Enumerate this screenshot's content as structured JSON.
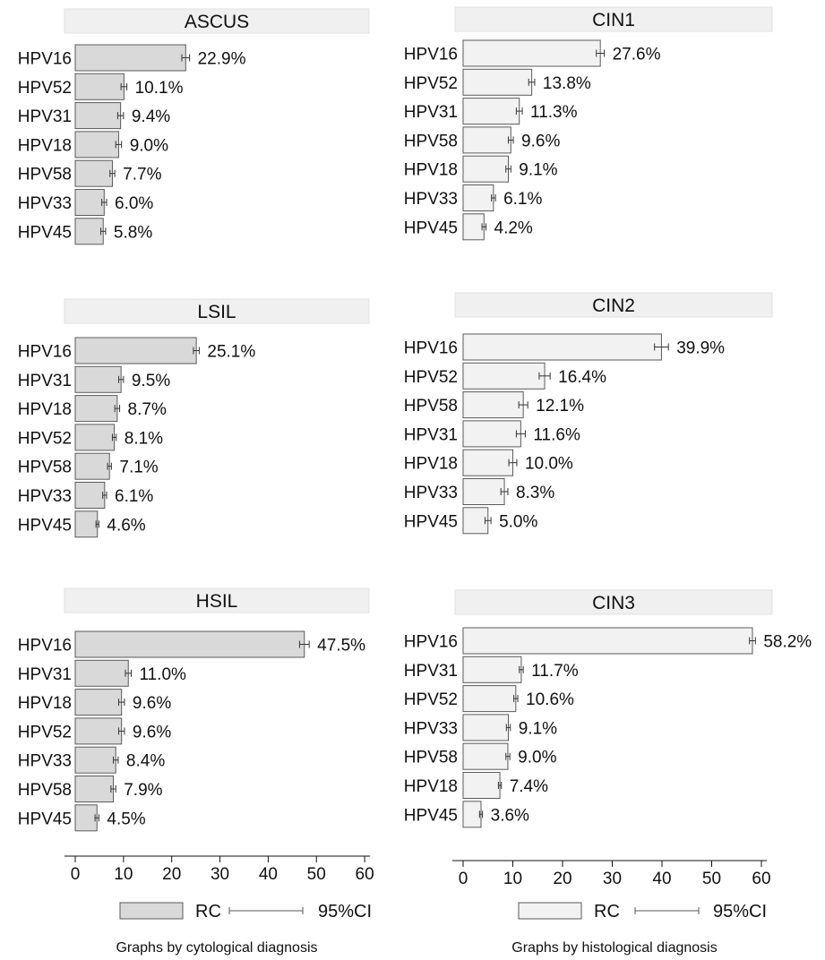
{
  "left_caption": "Graphs by cytological diagnosis",
  "right_caption": "Graphs by histological diagnosis",
  "legend": {
    "bar_label": "RC",
    "ci_label": "95%CI"
  },
  "colors": {
    "cyto_bar": "#d9d9d9",
    "histo_bar": "#f2f2f2",
    "header_bg": "#f0f0f0",
    "bar_stroke": "#5a5a5a"
  },
  "chart_data": [
    {
      "type": "bar",
      "orientation": "horizontal",
      "title": "ASCUS",
      "xlim": [
        0,
        60
      ],
      "xticks": [
        0,
        10,
        20,
        30,
        40,
        50,
        60
      ],
      "categories": [
        "HPV16",
        "HPV52",
        "HPV31",
        "HPV18",
        "HPV58",
        "HPV33",
        "HPV45"
      ],
      "values": [
        22.9,
        10.1,
        9.4,
        9.0,
        7.7,
        6.0,
        5.8
      ],
      "labels": [
        "22.9%",
        "10.1%",
        "9.4%",
        "9.0%",
        "7.7%",
        "6.0%",
        "5.8%"
      ],
      "ci_half_width": [
        0.8,
        0.6,
        0.6,
        0.6,
        0.5,
        0.5,
        0.5
      ]
    },
    {
      "type": "bar",
      "orientation": "horizontal",
      "title": "CIN1",
      "xlim": [
        0,
        60
      ],
      "xticks": [
        0,
        10,
        20,
        30,
        40,
        50,
        60
      ],
      "categories": [
        "HPV16",
        "HPV52",
        "HPV31",
        "HPV58",
        "HPV18",
        "HPV33",
        "HPV45"
      ],
      "values": [
        27.6,
        13.8,
        11.3,
        9.6,
        9.1,
        6.1,
        4.2
      ],
      "labels": [
        "27.6%",
        "13.8%",
        "11.3%",
        "9.6%",
        "9.1%",
        "6.1%",
        "4.2%"
      ],
      "ci_half_width": [
        0.8,
        0.6,
        0.6,
        0.5,
        0.5,
        0.4,
        0.4
      ]
    },
    {
      "type": "bar",
      "orientation": "horizontal",
      "title": "LSIL",
      "xlim": [
        0,
        60
      ],
      "xticks": [
        0,
        10,
        20,
        30,
        40,
        50,
        60
      ],
      "categories": [
        "HPV16",
        "HPV31",
        "HPV18",
        "HPV52",
        "HPV58",
        "HPV33",
        "HPV45"
      ],
      "values": [
        25.1,
        9.5,
        8.7,
        8.1,
        7.1,
        6.1,
        4.6
      ],
      "labels": [
        "25.1%",
        "9.5%",
        "8.7%",
        "8.1%",
        "7.1%",
        "6.1%",
        "4.6%"
      ],
      "ci_half_width": [
        0.6,
        0.5,
        0.5,
        0.4,
        0.4,
        0.4,
        0.3
      ]
    },
    {
      "type": "bar",
      "orientation": "horizontal",
      "title": "CIN2",
      "xlim": [
        0,
        60
      ],
      "xticks": [
        0,
        10,
        20,
        30,
        40,
        50,
        60
      ],
      "categories": [
        "HPV16",
        "HPV52",
        "HPV58",
        "HPV31",
        "HPV18",
        "HPV33",
        "HPV45"
      ],
      "values": [
        39.9,
        16.4,
        12.1,
        11.6,
        10.0,
        8.3,
        5.0
      ],
      "labels": [
        "39.9%",
        "16.4%",
        "12.1%",
        "11.6%",
        "10.0%",
        "8.3%",
        "5.0%"
      ],
      "ci_half_width": [
        1.4,
        1.1,
        0.9,
        0.9,
        0.8,
        0.7,
        0.6
      ]
    },
    {
      "type": "bar",
      "orientation": "horizontal",
      "title": "HSIL",
      "xlim": [
        0,
        60
      ],
      "xticks": [
        0,
        10,
        20,
        30,
        40,
        50,
        60
      ],
      "categories": [
        "HPV16",
        "HPV31",
        "HPV18",
        "HPV52",
        "HPV33",
        "HPV58",
        "HPV45"
      ],
      "values": [
        47.5,
        11.0,
        9.6,
        9.6,
        8.4,
        7.9,
        4.5
      ],
      "labels": [
        "47.5%",
        "11.0%",
        "9.6%",
        "9.6%",
        "8.4%",
        "7.9%",
        "4.5%"
      ],
      "ci_half_width": [
        1.0,
        0.6,
        0.6,
        0.6,
        0.5,
        0.5,
        0.4
      ]
    },
    {
      "type": "bar",
      "orientation": "horizontal",
      "title": "CIN3",
      "xlim": [
        0,
        60
      ],
      "xticks": [
        0,
        10,
        20,
        30,
        40,
        50,
        60
      ],
      "categories": [
        "HPV16",
        "HPV31",
        "HPV52",
        "HPV33",
        "HPV58",
        "HPV18",
        "HPV45"
      ],
      "values": [
        58.2,
        11.7,
        10.6,
        9.1,
        9.0,
        7.4,
        3.6
      ],
      "labels": [
        "58.2%",
        "11.7%",
        "10.6%",
        "9.1%",
        "9.0%",
        "7.4%",
        "3.6%"
      ],
      "ci_half_width": [
        0.6,
        0.4,
        0.4,
        0.4,
        0.4,
        0.3,
        0.3
      ]
    }
  ]
}
